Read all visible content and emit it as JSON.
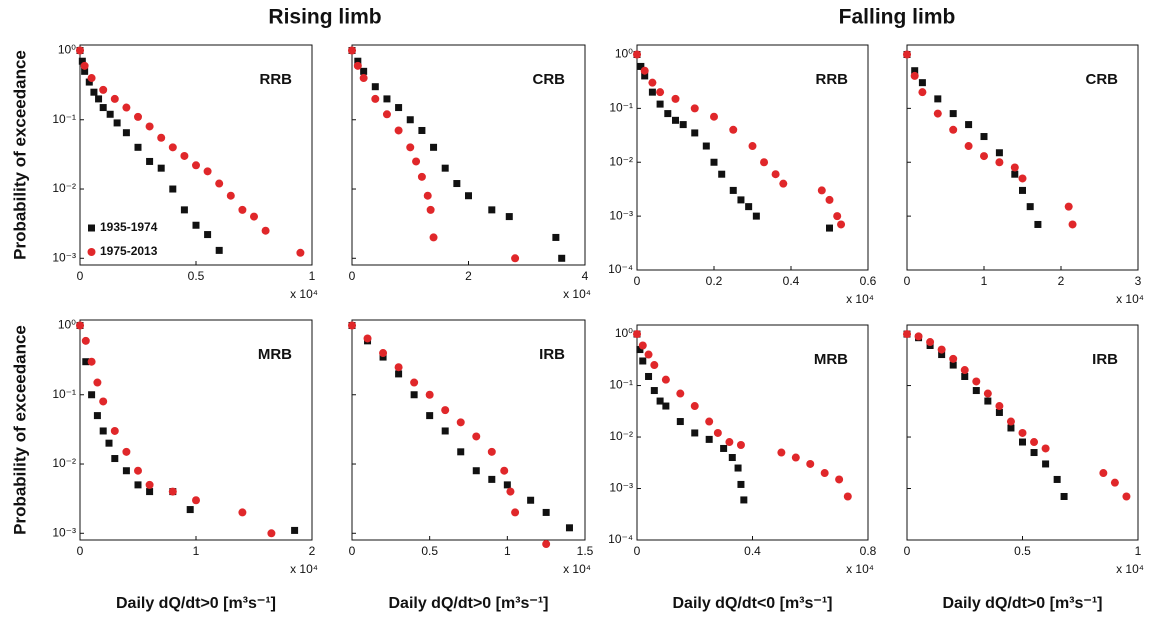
{
  "column_titles": [
    "Rising limb",
    "Falling limb"
  ],
  "legend": [
    {
      "name": "1935-1974",
      "color": "#111111",
      "marker": "square"
    },
    {
      "name": "1975-2013",
      "color": "#e0272a",
      "marker": "circle"
    }
  ],
  "chart_data": [
    {
      "type": "scatter",
      "label": "RRB",
      "log_y": true,
      "legend": true,
      "y_label": "Probability of exceedance",
      "x_multiplier": "x 10⁴",
      "xlim": [
        0,
        1
      ],
      "xticks": [
        0,
        0.5,
        1
      ],
      "ylim": [
        0.0008,
        1.2
      ],
      "yticks": [
        {
          "value": 0.001,
          "label": "10⁻³"
        },
        {
          "value": 0.01,
          "label": "10⁻²"
        },
        {
          "value": 0.1,
          "label": "10⁻¹"
        },
        {
          "value": 1,
          "label": "10⁰"
        }
      ],
      "series": [
        {
          "x": [
            0,
            0.01,
            0.02,
            0.04,
            0.06,
            0.08,
            0.1,
            0.13,
            0.16,
            0.2,
            0.25,
            0.3,
            0.35,
            0.4,
            0.45,
            0.5,
            0.55,
            0.6
          ],
          "values": [
            1,
            0.7,
            0.5,
            0.35,
            0.25,
            0.2,
            0.15,
            0.12,
            0.09,
            0.065,
            0.04,
            0.025,
            0.02,
            0.01,
            0.005,
            0.003,
            0.0022,
            0.0013
          ]
        },
        {
          "x": [
            0,
            0.02,
            0.05,
            0.1,
            0.15,
            0.2,
            0.25,
            0.3,
            0.35,
            0.4,
            0.45,
            0.5,
            0.55,
            0.6,
            0.65,
            0.7,
            0.75,
            0.8,
            0.95
          ],
          "values": [
            1,
            0.6,
            0.4,
            0.27,
            0.2,
            0.15,
            0.11,
            0.08,
            0.055,
            0.04,
            0.03,
            0.022,
            0.018,
            0.012,
            0.008,
            0.005,
            0.004,
            0.0025,
            0.0012
          ]
        }
      ]
    },
    {
      "type": "scatter",
      "label": "CRB",
      "log_y": true,
      "x_multiplier": "x 10⁴",
      "xlim": [
        0,
        4
      ],
      "xticks": [
        0,
        2,
        4
      ],
      "ylim": [
        0.0008,
        1.2
      ],
      "yticks": [
        0.001,
        0.01,
        0.1,
        1
      ],
      "series": [
        {
          "x": [
            0,
            0.1,
            0.2,
            0.4,
            0.6,
            0.8,
            1.0,
            1.2,
            1.4,
            1.6,
            1.8,
            2.0,
            2.4,
            2.7,
            3.5,
            3.6
          ],
          "values": [
            1,
            0.7,
            0.5,
            0.3,
            0.2,
            0.15,
            0.1,
            0.07,
            0.04,
            0.02,
            0.012,
            0.008,
            0.005,
            0.004,
            0.002,
            0.001
          ]
        },
        {
          "x": [
            0,
            0.1,
            0.2,
            0.4,
            0.6,
            0.8,
            1.0,
            1.1,
            1.2,
            1.3,
            1.35,
            1.4,
            2.8
          ],
          "values": [
            1,
            0.6,
            0.4,
            0.2,
            0.12,
            0.07,
            0.04,
            0.025,
            0.015,
            0.008,
            0.005,
            0.002,
            0.001
          ]
        }
      ]
    },
    {
      "type": "scatter",
      "label": "RRB",
      "log_y": true,
      "x_multiplier": "x 10⁴",
      "xlim": [
        0,
        0.6
      ],
      "xticks": [
        0,
        0.2,
        0.4,
        0.6
      ],
      "ylim": [
        0.0001,
        1.5
      ],
      "yticks": [
        {
          "value": 0.0001,
          "label": "10⁻⁴"
        },
        {
          "value": 0.001,
          "label": "10⁻³"
        },
        {
          "value": 0.01,
          "label": "10⁻²"
        },
        {
          "value": 0.1,
          "label": "10⁻¹"
        },
        {
          "value": 1,
          "label": "10⁰"
        }
      ],
      "series": [
        {
          "x": [
            0,
            0.01,
            0.02,
            0.04,
            0.06,
            0.08,
            0.1,
            0.12,
            0.15,
            0.18,
            0.2,
            0.22,
            0.25,
            0.27,
            0.29,
            0.31,
            0.5
          ],
          "values": [
            1,
            0.6,
            0.4,
            0.2,
            0.12,
            0.08,
            0.06,
            0.05,
            0.035,
            0.02,
            0.01,
            0.006,
            0.003,
            0.002,
            0.0015,
            0.001,
            0.0006
          ]
        },
        {
          "x": [
            0,
            0.02,
            0.04,
            0.06,
            0.1,
            0.15,
            0.2,
            0.25,
            0.3,
            0.33,
            0.36,
            0.38,
            0.48,
            0.5,
            0.52,
            0.53
          ],
          "values": [
            1,
            0.5,
            0.3,
            0.2,
            0.15,
            0.1,
            0.07,
            0.04,
            0.02,
            0.01,
            0.006,
            0.004,
            0.003,
            0.002,
            0.001,
            0.0007
          ]
        }
      ]
    },
    {
      "type": "scatter",
      "label": "CRB",
      "log_y": true,
      "x_multiplier": "x 10⁴",
      "xlim": [
        0,
        3
      ],
      "xticks": [
        0,
        1,
        2,
        3
      ],
      "ylim": [
        0.0001,
        1.5
      ],
      "yticks": [
        0.0001,
        0.001,
        0.01,
        0.1,
        1
      ],
      "series": [
        {
          "x": [
            0,
            0.1,
            0.2,
            0.4,
            0.6,
            0.8,
            1.0,
            1.2,
            1.4,
            1.5,
            1.6,
            1.7
          ],
          "values": [
            1,
            0.5,
            0.3,
            0.15,
            0.08,
            0.05,
            0.03,
            0.015,
            0.006,
            0.003,
            0.0015,
            0.0007
          ]
        },
        {
          "x": [
            0,
            0.1,
            0.2,
            0.4,
            0.6,
            0.8,
            1.0,
            1.2,
            1.4,
            1.5,
            2.1,
            2.15
          ],
          "values": [
            1,
            0.4,
            0.2,
            0.08,
            0.04,
            0.02,
            0.013,
            0.01,
            0.008,
            0.005,
            0.0015,
            0.0007
          ]
        }
      ]
    },
    {
      "type": "scatter",
      "label": "MRB",
      "log_y": true,
      "y_label": "Probability of exceedance",
      "x_label": "Daily dQ/dt>0 [m³s⁻¹]",
      "x_multiplier": "x 10⁴",
      "xlim": [
        0,
        2
      ],
      "xticks": [
        0,
        1,
        2
      ],
      "ylim": [
        0.0008,
        1.2
      ],
      "yticks": [
        {
          "value": 0.001,
          "label": "10⁻³"
        },
        {
          "value": 0.01,
          "label": "10⁻²"
        },
        {
          "value": 0.1,
          "label": "10⁻¹"
        },
        {
          "value": 1,
          "label": "10⁰"
        }
      ],
      "series": [
        {
          "x": [
            0,
            0.05,
            0.1,
            0.15,
            0.2,
            0.25,
            0.3,
            0.4,
            0.5,
            0.6,
            0.8,
            0.95,
            1.85
          ],
          "values": [
            1,
            0.3,
            0.1,
            0.05,
            0.03,
            0.02,
            0.012,
            0.008,
            0.005,
            0.004,
            0.004,
            0.0022,
            0.0011
          ]
        },
        {
          "x": [
            0,
            0.05,
            0.1,
            0.15,
            0.2,
            0.3,
            0.4,
            0.5,
            0.6,
            0.8,
            1.0,
            1.4,
            1.65
          ],
          "values": [
            1,
            0.6,
            0.3,
            0.15,
            0.08,
            0.03,
            0.015,
            0.008,
            0.005,
            0.004,
            0.003,
            0.002,
            0.001
          ]
        }
      ]
    },
    {
      "type": "scatter",
      "label": "IRB",
      "log_y": true,
      "x_label": "Daily dQ/dt>0 [m³s⁻¹]",
      "x_multiplier": "x 10⁴",
      "xlim": [
        0,
        1.5
      ],
      "xticks": [
        0,
        0.5,
        1,
        1.5
      ],
      "ylim": [
        0.0008,
        1.2
      ],
      "yticks": [
        0.001,
        0.01,
        0.1,
        1
      ],
      "series": [
        {
          "x": [
            0,
            0.1,
            0.2,
            0.3,
            0.4,
            0.5,
            0.6,
            0.7,
            0.8,
            0.9,
            1.0,
            1.15,
            1.25,
            1.4
          ],
          "values": [
            1,
            0.6,
            0.35,
            0.2,
            0.1,
            0.05,
            0.03,
            0.015,
            0.008,
            0.006,
            0.005,
            0.003,
            0.002,
            0.0012
          ]
        },
        {
          "x": [
            0,
            0.1,
            0.2,
            0.3,
            0.4,
            0.5,
            0.6,
            0.7,
            0.8,
            0.9,
            0.98,
            1.02,
            1.05,
            1.25
          ],
          "values": [
            1,
            0.65,
            0.4,
            0.25,
            0.15,
            0.1,
            0.06,
            0.04,
            0.025,
            0.015,
            0.008,
            0.004,
            0.002,
            0.0007
          ]
        }
      ]
    },
    {
      "type": "scatter",
      "label": "MRB",
      "log_y": true,
      "x_label": "Daily dQ/dt<0 [m³s⁻¹]",
      "x_multiplier": "x 10⁴",
      "xlim": [
        0,
        0.8
      ],
      "xticks": [
        0,
        0.4,
        0.8
      ],
      "ylim": [
        0.0001,
        1.5
      ],
      "yticks": [
        {
          "value": 0.0001,
          "label": "10⁻⁴"
        },
        {
          "value": 0.001,
          "label": "10⁻³"
        },
        {
          "value": 0.01,
          "label": "10⁻²"
        },
        {
          "value": 0.1,
          "label": "10⁻¹"
        },
        {
          "value": 1,
          "label": "10⁰"
        }
      ],
      "series": [
        {
          "x": [
            0,
            0.01,
            0.02,
            0.04,
            0.06,
            0.08,
            0.1,
            0.15,
            0.2,
            0.25,
            0.3,
            0.33,
            0.35,
            0.36,
            0.37
          ],
          "values": [
            1,
            0.5,
            0.3,
            0.15,
            0.08,
            0.05,
            0.04,
            0.02,
            0.012,
            0.009,
            0.006,
            0.004,
            0.0025,
            0.0012,
            0.0006
          ]
        },
        {
          "x": [
            0,
            0.02,
            0.04,
            0.06,
            0.1,
            0.15,
            0.2,
            0.25,
            0.28,
            0.32,
            0.36,
            0.5,
            0.55,
            0.6,
            0.65,
            0.7,
            0.73
          ],
          "values": [
            1,
            0.6,
            0.4,
            0.25,
            0.13,
            0.07,
            0.04,
            0.02,
            0.012,
            0.008,
            0.007,
            0.005,
            0.004,
            0.003,
            0.002,
            0.0015,
            0.0007
          ]
        }
      ]
    },
    {
      "type": "scatter",
      "label": "IRB",
      "log_y": true,
      "x_label": "Daily dQ/dt>0 [m³s⁻¹]",
      "x_multiplier": "x 10⁴",
      "xlim": [
        0,
        1
      ],
      "xticks": [
        0,
        0.5,
        1
      ],
      "ylim": [
        0.0001,
        1.5
      ],
      "yticks": [
        0.0001,
        0.001,
        0.01,
        0.1,
        1
      ],
      "series": [
        {
          "x": [
            0,
            0.05,
            0.1,
            0.15,
            0.2,
            0.25,
            0.3,
            0.35,
            0.4,
            0.45,
            0.5,
            0.55,
            0.6,
            0.65,
            0.68
          ],
          "values": [
            1,
            0.85,
            0.6,
            0.4,
            0.25,
            0.15,
            0.08,
            0.05,
            0.03,
            0.015,
            0.008,
            0.005,
            0.003,
            0.0015,
            0.0007
          ]
        },
        {
          "x": [
            0,
            0.05,
            0.1,
            0.15,
            0.2,
            0.25,
            0.3,
            0.35,
            0.4,
            0.45,
            0.5,
            0.55,
            0.6,
            0.85,
            0.9,
            0.95
          ],
          "values": [
            1,
            0.9,
            0.7,
            0.5,
            0.33,
            0.2,
            0.12,
            0.07,
            0.04,
            0.02,
            0.012,
            0.008,
            0.006,
            0.002,
            0.0013,
            0.0007
          ]
        }
      ]
    }
  ]
}
